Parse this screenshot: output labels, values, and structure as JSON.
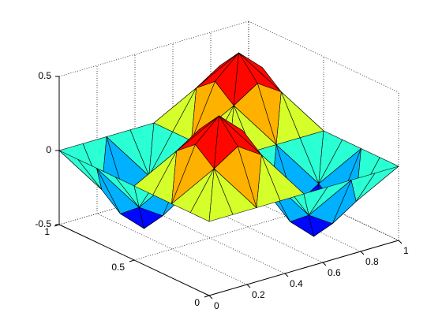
{
  "chart_data": {
    "type": "surface",
    "x": [
      0,
      0.125,
      0.25,
      0.375,
      0.5,
      0.625,
      0.75,
      0.875,
      1
    ],
    "y": [
      0,
      0.125,
      0.25,
      0.375,
      0.5,
      0.625,
      0.75,
      0.875,
      1
    ],
    "z": [
      [
        0,
        0,
        0,
        0,
        0,
        0,
        0,
        0,
        0
      ],
      [
        0,
        0.25,
        0.3536,
        0.25,
        0,
        -0.25,
        -0.3536,
        -0.25,
        0
      ],
      [
        0,
        0.3536,
        0.5,
        0.3536,
        0,
        -0.3536,
        -0.5,
        -0.3536,
        0
      ],
      [
        0,
        0.25,
        0.3536,
        0.25,
        0,
        -0.25,
        -0.3536,
        -0.25,
        0
      ],
      [
        0,
        0,
        0,
        0,
        0,
        0,
        0,
        0,
        0
      ],
      [
        0,
        -0.25,
        -0.3536,
        -0.25,
        0,
        0.25,
        0.3536,
        0.25,
        0
      ],
      [
        0,
        -0.3536,
        -0.5,
        -0.3536,
        0,
        0.3536,
        0.5,
        0.3536,
        0
      ],
      [
        0,
        -0.25,
        -0.3536,
        -0.25,
        0,
        0.25,
        0.3536,
        0.25,
        0
      ],
      [
        0,
        0,
        0,
        0,
        0,
        0,
        0,
        0,
        0
      ]
    ],
    "xlim": [
      0,
      1
    ],
    "xticks": [
      0,
      0.2,
      0.4,
      0.6,
      0.8,
      1
    ],
    "ylim": [
      0,
      1
    ],
    "yticks": [
      0,
      0.5,
      1
    ],
    "zlim": [
      -0.5,
      0.5
    ],
    "zticks": [
      -0.5,
      0,
      0.5
    ],
    "grid": true,
    "colormap": "jet"
  }
}
